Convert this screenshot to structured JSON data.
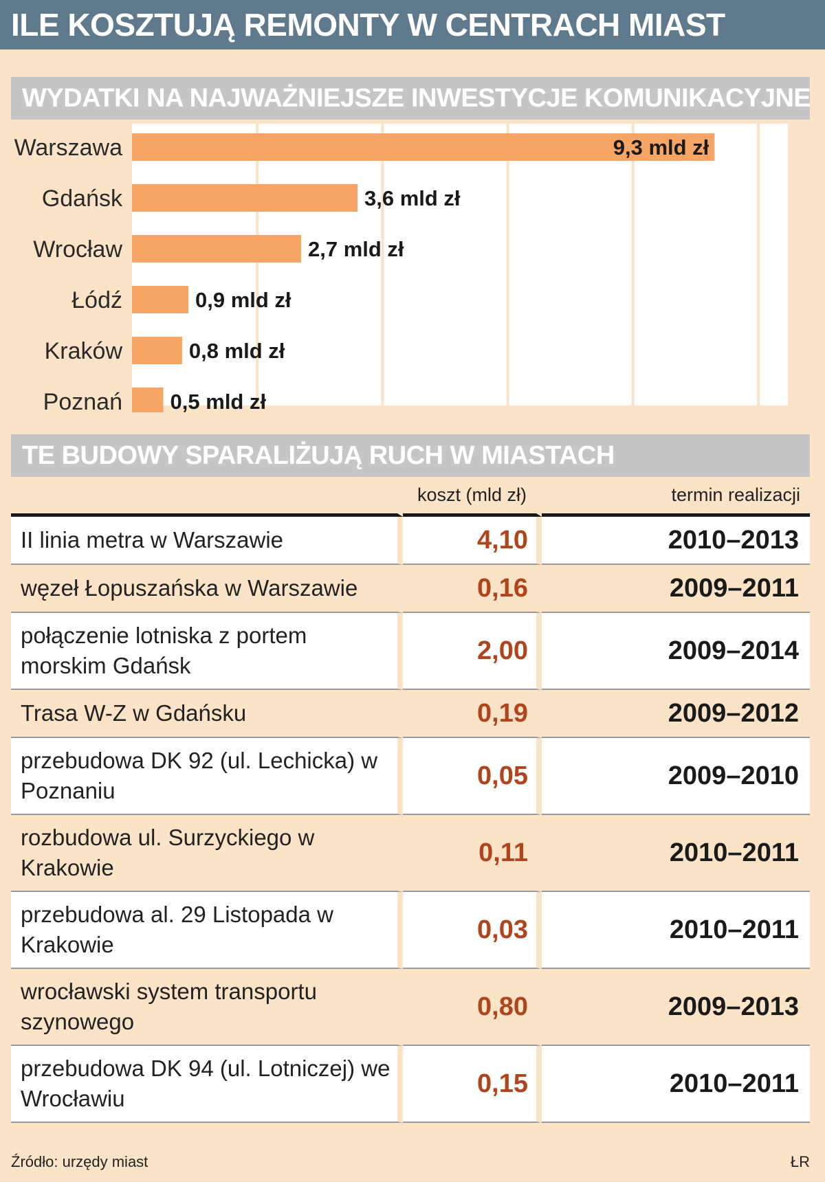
{
  "title": "ILE KOSZTUJĄ REMONTY W CENTRACH MIAST",
  "section1_title": "WYDATKI NA NAJWAŻNIEJSZE INWESTYCJE KOMUNIKACYJNE",
  "section2_title": "TE BUDOWY SPARALIŻUJĄ RUCH W MIASTACH",
  "colors": {
    "header": "#5f7a8c",
    "section": "#c6c6c6",
    "bar": "#f6a565",
    "background": "#fbe3c8",
    "cost": "#b0441a"
  },
  "chart_data": {
    "type": "bar",
    "orientation": "horizontal",
    "categories": [
      "Warszawa",
      "Gdańsk",
      "Wrocław",
      "Łódź",
      "Kraków",
      "Poznań"
    ],
    "values": [
      9.3,
      3.6,
      2.7,
      0.9,
      0.8,
      0.5
    ],
    "value_labels": [
      "9,3 mld zł",
      "3,6 mld zł",
      "2,7 mld zł",
      "0,9 mld zł",
      "0,8 mld zł",
      "0,5 mld zł"
    ],
    "title": "WYDATKI NA NAJWAŻNIEJSZE INWESTYCJE KOMUNIKACYJNE",
    "xlim": [
      0,
      10
    ],
    "grid": true
  },
  "table": {
    "headers": [
      "",
      "koszt (mld zł)",
      "termin realizacji"
    ],
    "rows": [
      {
        "name": "II linia metra w Warszawie",
        "cost": "4,10",
        "term": "2010–2013"
      },
      {
        "name": "węzeł Łopuszańska w Warszawie",
        "cost": "0,16",
        "term": "2009–2011"
      },
      {
        "name": "połączenie lotniska z portem morskim Gdańsk",
        "cost": "2,00",
        "term": "2009–2014"
      },
      {
        "name": "Trasa W-Z w Gdańsku",
        "cost": "0,19",
        "term": "2009–2012"
      },
      {
        "name": "przebudowa DK 92 (ul. Lechicka) w Poznaniu",
        "cost": "0,05",
        "term": "2009–2010"
      },
      {
        "name": "rozbudowa ul. Surzyckiego w Krakowie",
        "cost": "0,11",
        "term": "2010–2011"
      },
      {
        "name": "przebudowa al. 29 Listopada w Krakowie",
        "cost": "0,03",
        "term": "2010–2011"
      },
      {
        "name": "wrocławski system transportu szynowego",
        "cost": "0,80",
        "term": "2009–2013"
      },
      {
        "name": "przebudowa DK 94 (ul. Lotniczej) we Wrocławiu",
        "cost": "0,15",
        "term": "2010–2011"
      }
    ]
  },
  "source": "Źródło: urzędy miast",
  "signature": "ŁR"
}
